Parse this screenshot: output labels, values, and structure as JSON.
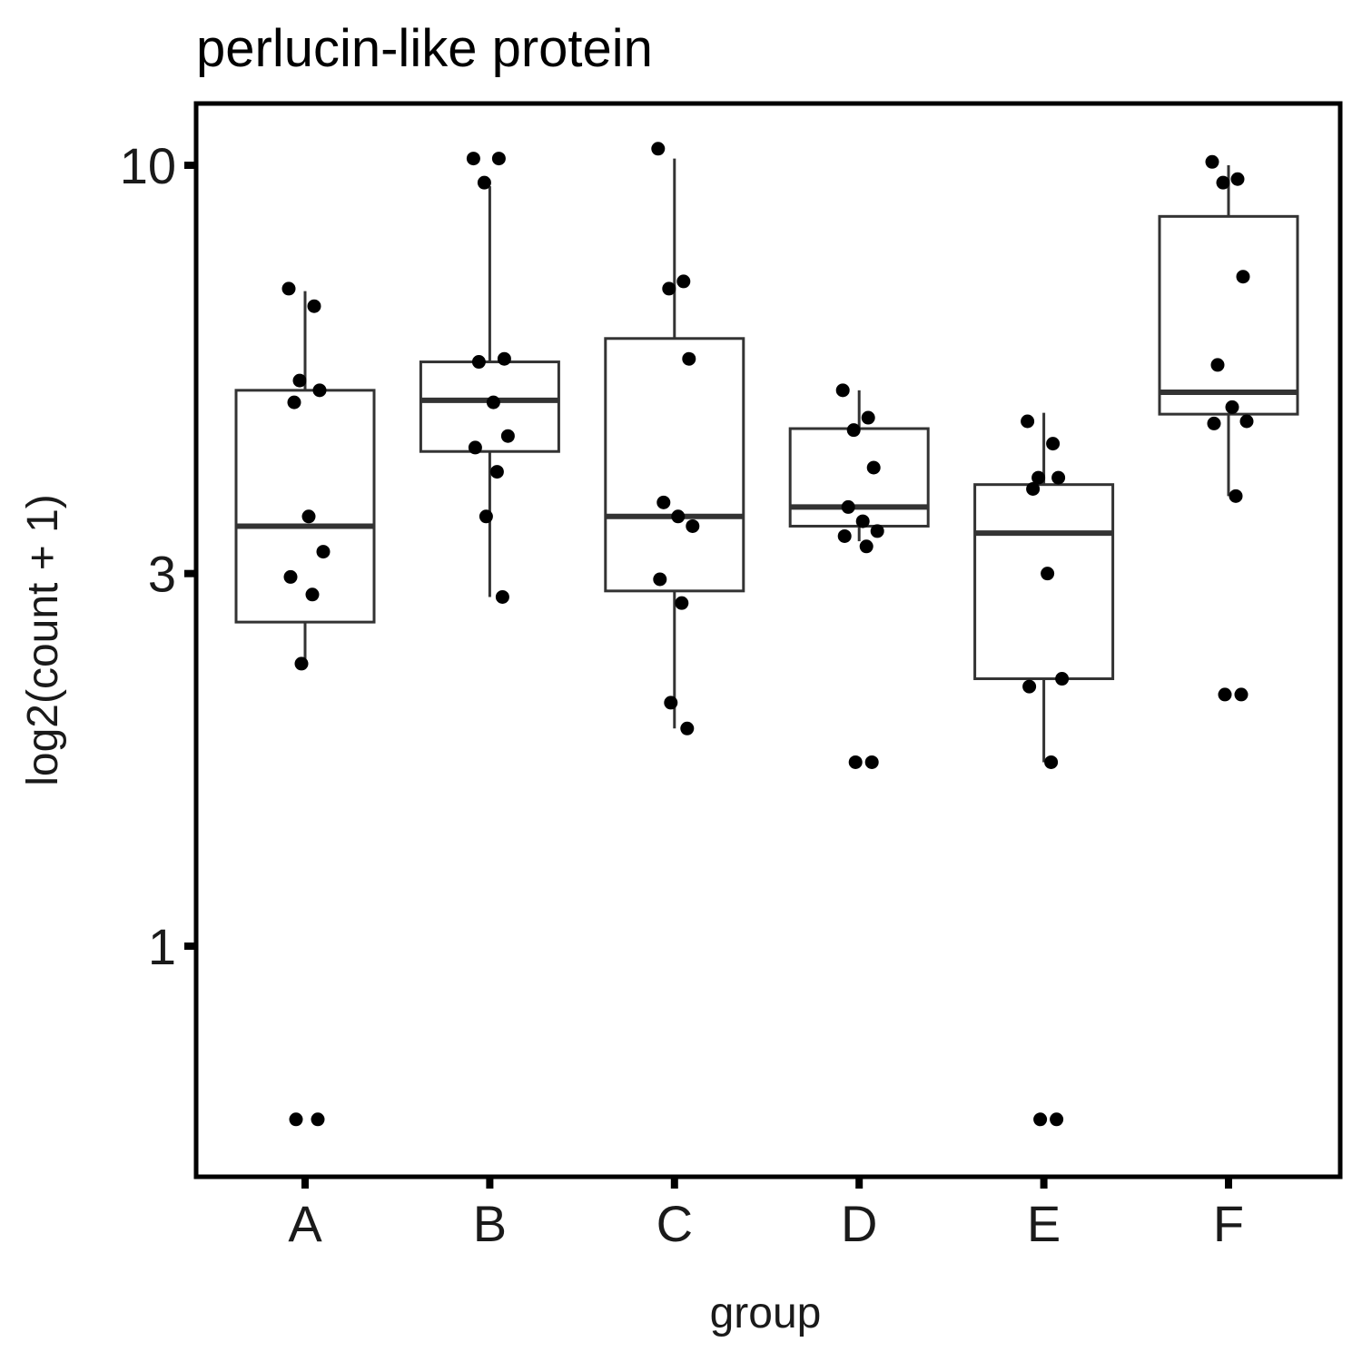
{
  "chart_data": {
    "type": "box",
    "title": "perlucin-like protein",
    "xlabel": "group",
    "ylabel": "log2(count + 1)",
    "y_scale": "log",
    "ylim": [
      0.55,
      11.5
    ],
    "y_ticks": [
      {
        "value": 1,
        "label": "1"
      },
      {
        "value": 3,
        "label": "3"
      },
      {
        "value": 10,
        "label": "10"
      }
    ],
    "grid": false,
    "legend": "none",
    "categories": [
      "A",
      "B",
      "C",
      "D",
      "E",
      "F"
    ],
    "boxes": [
      {
        "group": "A",
        "whisker_low": 2.3,
        "q1": 2.6,
        "median": 3.45,
        "q3": 5.15,
        "whisker_high": 6.9
      },
      {
        "group": "B",
        "whisker_low": 2.8,
        "q1": 4.3,
        "median": 5.0,
        "q3": 5.6,
        "whisker_high": 9.4
      },
      {
        "group": "C",
        "whisker_low": 1.9,
        "q1": 2.85,
        "median": 3.55,
        "q3": 6.0,
        "whisker_high": 10.2
      },
      {
        "group": "D",
        "whisker_low": 3.3,
        "q1": 3.45,
        "median": 3.65,
        "q3": 4.6,
        "whisker_high": 5.15
      },
      {
        "group": "E",
        "whisker_low": 1.72,
        "q1": 2.2,
        "median": 3.38,
        "q3": 3.9,
        "whisker_high": 4.82
      },
      {
        "group": "F",
        "whisker_low": 3.77,
        "q1": 4.8,
        "median": 5.12,
        "q3": 8.6,
        "whisker_high": 10.0
      }
    ],
    "points": [
      {
        "group": "A",
        "y": [
          6.95,
          6.6,
          5.3,
          5.15,
          4.97,
          3.55,
          3.2,
          2.97,
          2.82,
          2.3,
          0.6,
          0.6
        ]
      },
      {
        "group": "B",
        "y": [
          10.2,
          10.2,
          9.5,
          5.65,
          5.6,
          4.97,
          4.5,
          4.35,
          4.05,
          3.55,
          2.8
        ]
      },
      {
        "group": "C",
        "y": [
          10.5,
          7.1,
          6.95,
          5.65,
          3.7,
          3.55,
          3.45,
          2.95,
          2.75,
          2.05,
          1.9
        ]
      },
      {
        "group": "D",
        "y": [
          5.15,
          4.75,
          4.58,
          4.1,
          3.65,
          3.5,
          3.4,
          3.35,
          3.25,
          1.72,
          1.72
        ]
      },
      {
        "group": "E",
        "y": [
          4.7,
          4.4,
          3.98,
          3.98,
          3.85,
          3.0,
          2.2,
          2.15,
          1.72,
          0.6,
          0.6
        ]
      },
      {
        "group": "F",
        "y": [
          10.1,
          9.6,
          9.5,
          7.2,
          5.55,
          4.9,
          4.7,
          4.67,
          3.77,
          2.1,
          2.1
        ]
      }
    ]
  }
}
